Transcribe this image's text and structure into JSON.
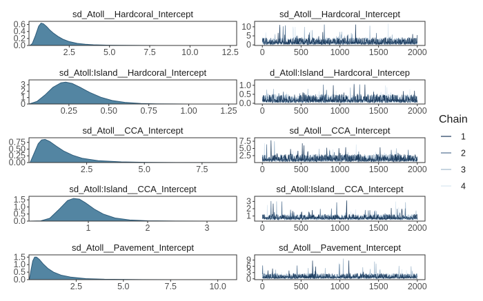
{
  "chart_data": [
    {
      "type": "area",
      "title": "sd_Atoll__Hardcoral_Intercept",
      "x": [
        0.05,
        0.2,
        0.4,
        0.6,
        0.75,
        0.9,
        1.1,
        1.3,
        1.5,
        1.8,
        2.1,
        2.5,
        3.0,
        3.5,
        4.0,
        5.0,
        6.0,
        8.0,
        10.0,
        12.8
      ],
      "y": [
        0.0,
        0.05,
        0.28,
        0.55,
        0.64,
        0.62,
        0.54,
        0.44,
        0.36,
        0.26,
        0.18,
        0.11,
        0.06,
        0.035,
        0.02,
        0.008,
        0.004,
        0.001,
        0.0,
        0.0
      ],
      "xlim": [
        0.0,
        12.9
      ],
      "ylim": [
        0.0,
        0.69
      ],
      "xticks": [
        2.5,
        5.0,
        7.5,
        10.0,
        12.5
      ],
      "xtick_labels": [
        "2.5",
        "5.0",
        "7.5",
        "10.0",
        "12.5"
      ],
      "yticks": [
        0.0,
        0.2,
        0.4,
        0.6
      ],
      "ytick_labels": [
        "0.0",
        "0.2",
        "0.4",
        "0.6"
      ]
    },
    {
      "type": "line",
      "title": "sd_Atoll__Hardcoral_Intercept",
      "xlim": [
        -100,
        2100
      ],
      "ylim": [
        -0.3,
        13.0
      ],
      "xticks": [
        0,
        500,
        1000,
        1500,
        2000
      ],
      "xtick_labels": [
        "0",
        "500",
        "1000",
        "1500",
        "2000"
      ],
      "yticks": [
        0,
        5,
        10
      ],
      "ytick_labels": [
        "0",
        "5",
        "10"
      ],
      "trace": {
        "iterations": 2000,
        "center": 2.4,
        "low": 0.2,
        "spread": 1.7,
        "spike_max": 12.0
      }
    },
    {
      "type": "area",
      "title": "sd_Atoll:Island__Hardcoral_Intercept",
      "x": [
        0.0,
        0.05,
        0.1,
        0.15,
        0.2,
        0.23,
        0.27,
        0.32,
        0.38,
        0.45,
        0.52,
        0.6,
        0.7,
        0.8,
        1.0,
        1.3
      ],
      "y": [
        0.0,
        0.4,
        1.4,
        2.6,
        3.3,
        3.4,
        3.2,
        2.6,
        1.8,
        1.05,
        0.55,
        0.25,
        0.08,
        0.03,
        0.005,
        0.0
      ],
      "xlim": [
        0.0,
        1.3
      ],
      "ylim": [
        0.0,
        3.75
      ],
      "xticks": [
        0.25,
        0.5,
        0.75,
        1.0,
        1.25
      ],
      "xtick_labels": [
        "0.25",
        "0.50",
        "0.75",
        "1.00",
        "1.25"
      ],
      "yticks": [
        0,
        1,
        2,
        3
      ],
      "ytick_labels": [
        "0",
        "1",
        "2",
        "3"
      ]
    },
    {
      "type": "line",
      "title": "d_Atoll:Island__Hardcoral_Intercep",
      "xlim": [
        -100,
        2100
      ],
      "ylim": [
        -0.04,
        1.3
      ],
      "xticks": [
        0,
        500,
        1000,
        1500,
        2000
      ],
      "xtick_labels": [
        "0",
        "500",
        "1000",
        "1500",
        "2000"
      ],
      "yticks": [
        0.0,
        0.5,
        1.0
      ],
      "ytick_labels": [
        "0.0",
        "0.5",
        "1.0"
      ],
      "trace": {
        "iterations": 2000,
        "center": 0.3,
        "low": 0.03,
        "spread": 0.2,
        "spike_max": 1.15
      }
    },
    {
      "type": "area",
      "title": "sd_Atoll__CCA_Intercept",
      "x": [
        0.05,
        0.2,
        0.4,
        0.55,
        0.7,
        0.9,
        1.2,
        1.5,
        1.9,
        2.3,
        3.0,
        4.0,
        5.0,
        7.0,
        9.0
      ],
      "y": [
        0.0,
        0.3,
        0.7,
        0.84,
        0.86,
        0.78,
        0.6,
        0.43,
        0.27,
        0.16,
        0.07,
        0.025,
        0.01,
        0.002,
        0.0
      ],
      "xlim": [
        0.0,
        9.0
      ],
      "ylim": [
        0.0,
        0.92
      ],
      "xticks": [
        2.5,
        5.0,
        7.5
      ],
      "xtick_labels": [
        "2.5",
        "5.0",
        "7.5"
      ],
      "yticks": [
        0.0,
        0.25,
        0.5,
        0.75
      ],
      "ytick_labels": [
        "0.00",
        "0.25",
        "0.50",
        "0.75"
      ]
    },
    {
      "type": "line",
      "title": "sd_Atoll__CCA_Intercept",
      "xlim": [
        -100,
        2100
      ],
      "ylim": [
        0.1,
        8.7
      ],
      "xticks": [
        0,
        500,
        1000,
        1500,
        2000
      ],
      "xtick_labels": [
        "0",
        "500",
        "1000",
        "1500",
        "2000"
      ],
      "yticks": [
        2.5,
        5.0,
        7.5
      ],
      "ytick_labels": [
        "2.5",
        "5.0",
        "7.5"
      ],
      "trace": {
        "iterations": 2000,
        "center": 1.8,
        "low": 0.4,
        "spread": 1.2,
        "spike_max": 7.9
      }
    },
    {
      "type": "area",
      "title": "sd_Atoll:Island__CCA_Intercept",
      "x": [
        0.0,
        0.2,
        0.35,
        0.5,
        0.65,
        0.75,
        0.85,
        0.95,
        1.1,
        1.25,
        1.45,
        1.7,
        2.0,
        2.5,
        3.0,
        3.5
      ],
      "y": [
        0.0,
        0.02,
        0.2,
        0.8,
        1.45,
        1.6,
        1.55,
        1.3,
        0.85,
        0.5,
        0.22,
        0.08,
        0.025,
        0.005,
        0.0,
        0.0
      ],
      "xlim": [
        0.0,
        3.5
      ],
      "ylim": [
        0.0,
        1.75
      ],
      "xticks": [
        1,
        2,
        3
      ],
      "xtick_labels": [
        "1",
        "2",
        "3"
      ],
      "yticks": [
        0.0,
        0.5,
        1.0,
        1.5
      ],
      "ytick_labels": [
        "0.0",
        "0.5",
        "1.0",
        "1.5"
      ]
    },
    {
      "type": "line",
      "title": "sd_Atoll:Island__CCA_Intercept",
      "xlim": [
        -100,
        2100
      ],
      "ylim": [
        0.3,
        3.7
      ],
      "xticks": [
        0,
        500,
        1000,
        1500,
        2000
      ],
      "xtick_labels": [
        "0",
        "500",
        "1000",
        "1500",
        "2000"
      ],
      "yticks": [
        1,
        2,
        3
      ],
      "ytick_labels": [
        "1",
        "2",
        "3"
      ],
      "trace": {
        "iterations": 2000,
        "center": 0.9,
        "low": 0.5,
        "spread": 0.35,
        "spike_max": 3.3
      }
    },
    {
      "type": "area",
      "title": "sd_Atoll__Pavement_Intercept",
      "x": [
        0.02,
        0.1,
        0.2,
        0.3,
        0.4,
        0.55,
        0.75,
        1.0,
        1.3,
        1.7,
        2.2,
        3.0,
        4.0,
        6.0,
        8.0,
        11.0
      ],
      "y": [
        0.0,
        0.6,
        1.25,
        1.5,
        1.5,
        1.35,
        1.05,
        0.75,
        0.5,
        0.3,
        0.17,
        0.07,
        0.03,
        0.008,
        0.002,
        0.0
      ],
      "xlim": [
        0.0,
        11.0
      ],
      "ylim": [
        0.0,
        1.65
      ],
      "xticks": [
        2.5,
        5.0,
        7.5,
        10.0
      ],
      "xtick_labels": [
        "2.5",
        "5.0",
        "7.5",
        "10.0"
      ],
      "yticks": [
        0.0,
        0.5,
        1.0,
        1.5
      ],
      "ytick_labels": [
        "0.0",
        "0.5",
        "1.0",
        "1.5"
      ]
    },
    {
      "type": "line",
      "title": "sd_Atoll__Pavement_Intercept",
      "xlim": [
        -100,
        2100
      ],
      "ylim": [
        -0.4,
        11.5
      ],
      "xticks": [
        0,
        500,
        1000,
        1500,
        2000
      ],
      "xtick_labels": [
        "0",
        "500",
        "1000",
        "1500",
        "2000"
      ],
      "yticks": [
        0,
        3,
        6,
        9
      ],
      "ytick_labels": [
        "0",
        "3",
        "6",
        "9"
      ],
      "trace": {
        "iterations": 2000,
        "center": 1.5,
        "low": 0.1,
        "spread": 1.1,
        "spike_max": 9.8
      }
    }
  ],
  "legend": {
    "title": "Chain",
    "items": [
      {
        "label": "1",
        "color": "#1b3a5c"
      },
      {
        "label": "2",
        "color": "#4f6f8f"
      },
      {
        "label": "3",
        "color": "#9fb7cc"
      },
      {
        "label": "4",
        "color": "#d7e5f0"
      }
    ]
  },
  "colors": {
    "density_fill": "#4a7e9d",
    "density_line": "#2d5a78",
    "panel_border": "#333333",
    "tick_label": "#4d4d4d"
  }
}
